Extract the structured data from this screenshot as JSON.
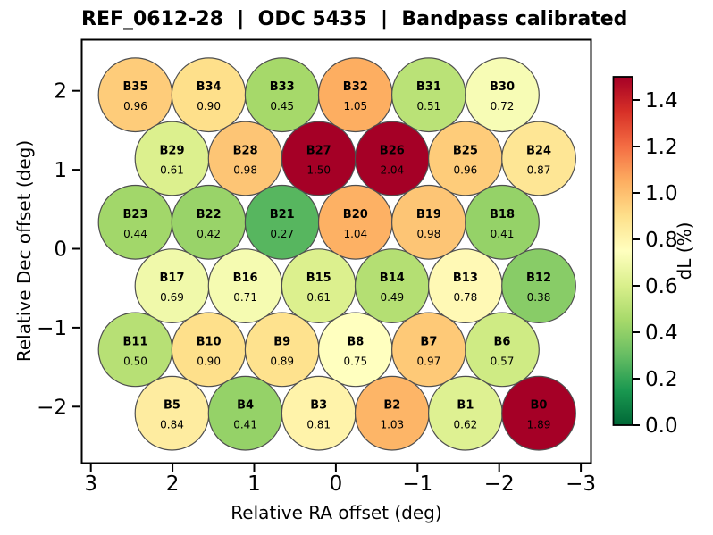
{
  "figure": {
    "title": "REF_0612-28  |  ODC 5435  |  Bandpass calibrated",
    "background": "#ffffff"
  },
  "axes": {
    "xlabel": "Relative RA offset (deg)",
    "ylabel": "Relative Dec offset (deg)",
    "xticks": [
      "3",
      "2",
      "1",
      "0",
      "−1",
      "−2",
      "−3"
    ],
    "yticks": [
      "2",
      "1",
      "0",
      "−1",
      "−2"
    ]
  },
  "colorbar": {
    "label": "dL  (%)",
    "ticks": [
      "0.0",
      "0.2",
      "0.4",
      "0.6",
      "0.8",
      "1.0",
      "1.2",
      "1.4"
    ],
    "tick_values": [
      0.0,
      0.2,
      0.4,
      0.6,
      0.8,
      1.0,
      1.2,
      1.4
    ],
    "vmin": 0.0,
    "vmax": 1.5,
    "colormap": "RdYlGn_r",
    "anchors": [
      "#006837",
      "#1a9850",
      "#66bd63",
      "#a6d96a",
      "#d9ef8b",
      "#ffffbf",
      "#fee08b",
      "#fdae61",
      "#f46d43",
      "#d73027",
      "#a50026"
    ]
  },
  "style": {
    "circle_edge": "#4f4f4f",
    "axis_color": "#000000"
  },
  "chart_data": {
    "type": "scatter",
    "title": "REF_0612-28  |  ODC 5435  |  Bandpass calibrated",
    "xlabel": "Relative RA offset (deg)",
    "ylabel": "Relative Dec offset (deg)",
    "value_label": "dL (%)",
    "x_range": [
      3,
      -3
    ],
    "y_range": [
      -2.5,
      2.5
    ],
    "x_axis_inverted": true,
    "marker": "hex-packed-circles",
    "rows_dec": [
      2.0,
      1.2,
      0.4,
      -0.4,
      -1.2,
      -2.0
    ],
    "ra_cols_even_rows": [
      2.46,
      1.56,
      0.66,
      -0.23,
      -1.13,
      -2.03
    ],
    "ra_cols_odd_rows": [
      2.03,
      1.13,
      0.23,
      -0.66,
      -1.56,
      -2.46
    ],
    "beams": [
      {
        "name": "B35",
        "value": 0.96,
        "row": 0,
        "col": 0
      },
      {
        "name": "B34",
        "value": 0.9,
        "row": 0,
        "col": 1
      },
      {
        "name": "B33",
        "value": 0.45,
        "row": 0,
        "col": 2
      },
      {
        "name": "B32",
        "value": 1.05,
        "row": 0,
        "col": 3
      },
      {
        "name": "B31",
        "value": 0.51,
        "row": 0,
        "col": 4
      },
      {
        "name": "B30",
        "value": 0.72,
        "row": 0,
        "col": 5
      },
      {
        "name": "B29",
        "value": 0.61,
        "row": 1,
        "col": 0
      },
      {
        "name": "B28",
        "value": 0.98,
        "row": 1,
        "col": 1
      },
      {
        "name": "B27",
        "value": 1.5,
        "row": 1,
        "col": 2
      },
      {
        "name": "B26",
        "value": 2.04,
        "row": 1,
        "col": 3
      },
      {
        "name": "B25",
        "value": 0.96,
        "row": 1,
        "col": 4
      },
      {
        "name": "B24",
        "value": 0.87,
        "row": 1,
        "col": 5
      },
      {
        "name": "B23",
        "value": 0.44,
        "row": 2,
        "col": 0
      },
      {
        "name": "B22",
        "value": 0.42,
        "row": 2,
        "col": 1
      },
      {
        "name": "B21",
        "value": 0.27,
        "row": 2,
        "col": 2
      },
      {
        "name": "B20",
        "value": 1.04,
        "row": 2,
        "col": 3
      },
      {
        "name": "B19",
        "value": 0.98,
        "row": 2,
        "col": 4
      },
      {
        "name": "B18",
        "value": 0.41,
        "row": 2,
        "col": 5
      },
      {
        "name": "B17",
        "value": 0.69,
        "row": 3,
        "col": 0
      },
      {
        "name": "B16",
        "value": 0.71,
        "row": 3,
        "col": 1
      },
      {
        "name": "B15",
        "value": 0.61,
        "row": 3,
        "col": 2
      },
      {
        "name": "B14",
        "value": 0.49,
        "row": 3,
        "col": 3
      },
      {
        "name": "B13",
        "value": 0.78,
        "row": 3,
        "col": 4
      },
      {
        "name": "B12",
        "value": 0.38,
        "row": 3,
        "col": 5
      },
      {
        "name": "B11",
        "value": 0.5,
        "row": 4,
        "col": 0
      },
      {
        "name": "B10",
        "value": 0.9,
        "row": 4,
        "col": 1
      },
      {
        "name": "B9",
        "value": 0.89,
        "row": 4,
        "col": 2
      },
      {
        "name": "B8",
        "value": 0.75,
        "row": 4,
        "col": 3
      },
      {
        "name": "B7",
        "value": 0.97,
        "row": 4,
        "col": 4
      },
      {
        "name": "B6",
        "value": 0.57,
        "row": 4,
        "col": 5
      },
      {
        "name": "B5",
        "value": 0.84,
        "row": 5,
        "col": 0
      },
      {
        "name": "B4",
        "value": 0.41,
        "row": 5,
        "col": 1
      },
      {
        "name": "B3",
        "value": 0.81,
        "row": 5,
        "col": 2
      },
      {
        "name": "B2",
        "value": 1.03,
        "row": 5,
        "col": 3
      },
      {
        "name": "B1",
        "value": 0.62,
        "row": 5,
        "col": 4
      },
      {
        "name": "B0",
        "value": 1.89,
        "row": 5,
        "col": 5
      }
    ]
  }
}
